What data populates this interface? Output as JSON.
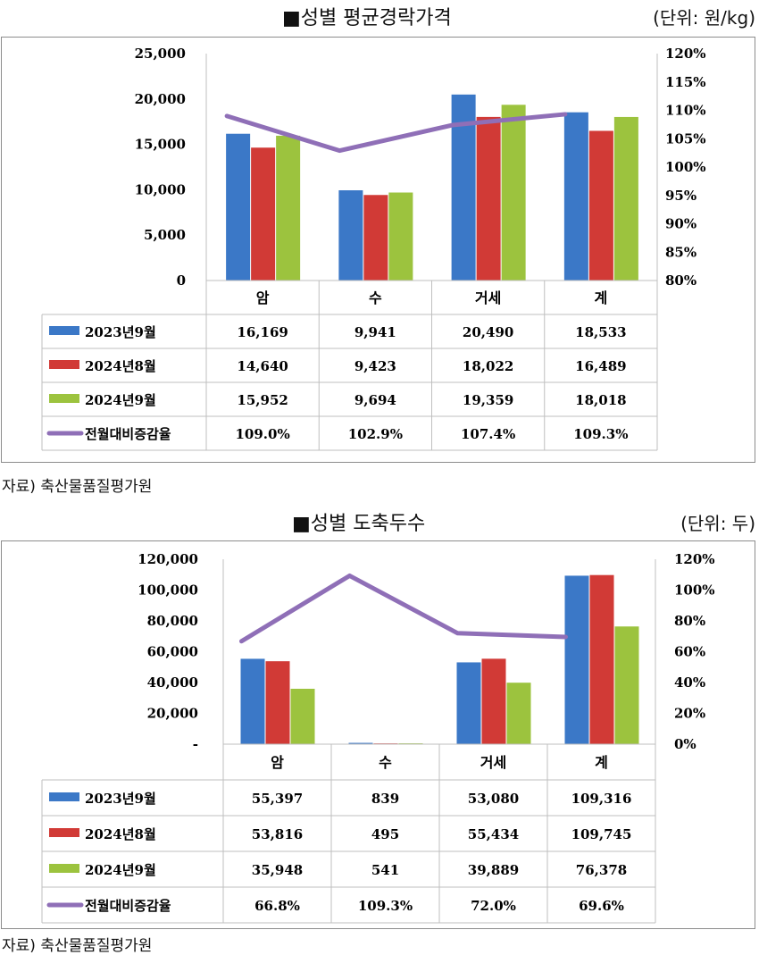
{
  "source_note": "자료) 축산물품질평가원",
  "chart_data": [
    {
      "type": "bar",
      "title": "■성별 평균경락가격",
      "unit_label": "(단위: 원/kg)",
      "categories": [
        "암",
        "수",
        "거세",
        "계"
      ],
      "y_left_ticks": [
        "25,000",
        "20,000",
        "15,000",
        "10,000",
        "5,000",
        "0"
      ],
      "y_right_ticks": [
        "120%",
        "115%",
        "110%",
        "105%",
        "100%",
        "95%",
        "90%",
        "85%",
        "80%"
      ],
      "ylim_left": [
        0,
        25000
      ],
      "ylim_right": [
        0.8,
        1.2
      ],
      "series": [
        {
          "name": "2023년9월",
          "values": [
            16169,
            9941,
            20490,
            18533
          ],
          "labels": [
            "16,169",
            "9,941",
            "20,490",
            "18,533"
          ],
          "color": "#3b78c7"
        },
        {
          "name": "2024년8월",
          "values": [
            14640,
            9423,
            18022,
            16489
          ],
          "labels": [
            "14,640",
            "9,423",
            "18,022",
            "16,489"
          ],
          "color": "#d13a36"
        },
        {
          "name": "2024년9월",
          "values": [
            15952,
            9694,
            19359,
            18018
          ],
          "labels": [
            "15,952",
            "9,694",
            "19,359",
            "18,018"
          ],
          "color": "#9cc33e"
        }
      ],
      "line": {
        "name": "전월대비증감율",
        "values": [
          1.09,
          1.029,
          1.074,
          1.093
        ],
        "labels": [
          "109.0%",
          "102.9%",
          "107.4%",
          "109.3%"
        ],
        "color": "#8f6fb7"
      }
    },
    {
      "type": "bar",
      "title": "■성별 도축두수",
      "unit_label": "(단위: 두)",
      "categories": [
        "암",
        "수",
        "거세",
        "계"
      ],
      "y_left_ticks": [
        "120,000",
        "100,000",
        "80,000",
        "60,000",
        "40,000",
        "20,000",
        "-"
      ],
      "y_right_ticks": [
        "120%",
        "100%",
        "80%",
        "60%",
        "40%",
        "20%",
        "0%"
      ],
      "ylim_left": [
        0,
        120000
      ],
      "ylim_right": [
        0,
        1.2
      ],
      "series": [
        {
          "name": "2023년9월",
          "values": [
            55397,
            839,
            53080,
            109316
          ],
          "labels": [
            "55,397",
            "839",
            "53,080",
            "109,316"
          ],
          "color": "#3b78c7"
        },
        {
          "name": "2024년8월",
          "values": [
            53816,
            495,
            55434,
            109745
          ],
          "labels": [
            "53,816",
            "495",
            "55,434",
            "109,745"
          ],
          "color": "#d13a36"
        },
        {
          "name": "2024년9월",
          "values": [
            35948,
            541,
            39889,
            76378
          ],
          "labels": [
            "35,948",
            "541",
            "39,889",
            "76,378"
          ],
          "color": "#9cc33e"
        }
      ],
      "line": {
        "name": "전월대비증감율",
        "values": [
          0.668,
          1.093,
          0.72,
          0.696
        ],
        "labels": [
          "66.8%",
          "109.3%",
          "72.0%",
          "69.6%"
        ],
        "color": "#8f6fb7"
      }
    }
  ]
}
